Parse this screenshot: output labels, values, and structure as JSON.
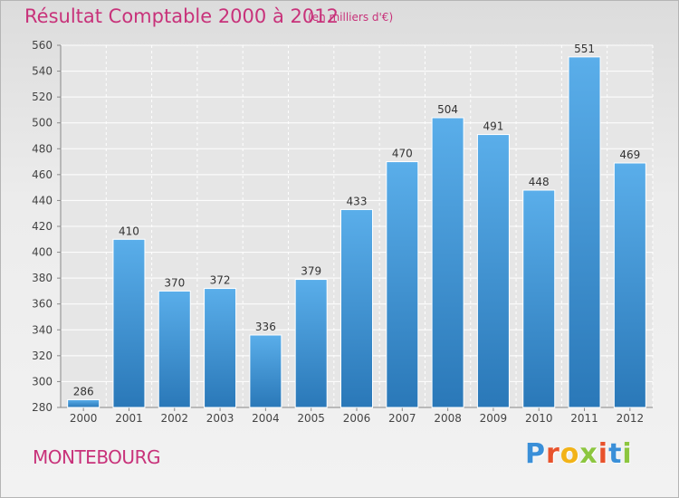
{
  "chart_data": {
    "type": "bar",
    "title": "Résultat Comptable 2000 à 2012",
    "subtitle": "(en milliers d'€)",
    "categories": [
      "2000",
      "2001",
      "2002",
      "2003",
      "2004",
      "2005",
      "2006",
      "2007",
      "2008",
      "2009",
      "2010",
      "2011",
      "2012"
    ],
    "values": [
      286,
      410,
      370,
      372,
      336,
      379,
      433,
      470,
      504,
      491,
      448,
      551,
      469
    ],
    "ylim": [
      280,
      560
    ],
    "yticks": [
      280,
      300,
      320,
      340,
      360,
      380,
      400,
      420,
      440,
      460,
      480,
      500,
      520,
      540,
      560
    ],
    "xlabel": "",
    "ylabel": "",
    "grid": true,
    "bar_color": "#4a9fe0"
  },
  "footer": {
    "commune": "MONTEBOURG",
    "logo_letters": [
      "P",
      "r",
      "o",
      "x",
      "i",
      "t",
      "i"
    ],
    "logo_colors": [
      "#3a8fd8",
      "#e8522c",
      "#f2b318",
      "#8cc63f",
      "#e8522c",
      "#3a8fd8",
      "#8cc63f"
    ]
  }
}
